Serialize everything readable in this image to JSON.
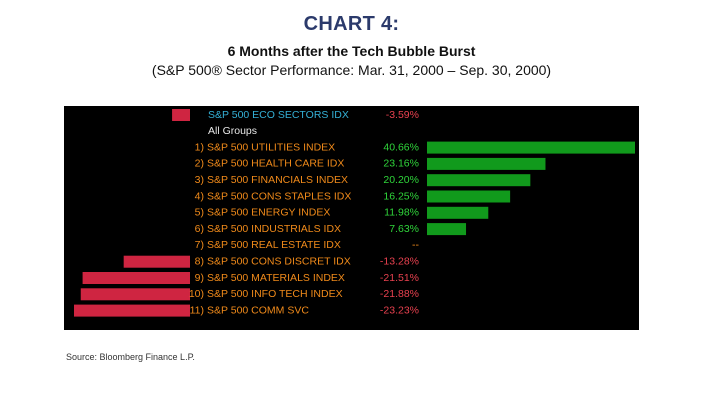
{
  "header": {
    "title": "CHART 4:",
    "subtitle": "6 Months after the Tech Bubble Burst",
    "subtitle2": "(S&P 500® Sector Performance: Mar. 31, 2000 – Sep. 30, 2000)"
  },
  "footer": {
    "source": "Source: Bloomberg Finance L.P."
  },
  "colors": {
    "positive": "#119a1c",
    "negative": "#cf2541",
    "label_orange": "#f08a1a",
    "index_cyan": "#34b0d6",
    "value_green": "#2fd43a",
    "value_red": "#e8414f",
    "group_white": "#e8e8e8"
  },
  "chart_data": {
    "type": "bar",
    "orientation": "horizontal",
    "summary": {
      "label": "S&P 500 ECO SECTORS IDX",
      "value": -3.59,
      "display": "-3.59%"
    },
    "group_label": "All Groups",
    "categories": [
      {
        "rank": "1)",
        "label": "S&P 500 UTILITIES INDEX",
        "value": 40.66,
        "display": "40.66%"
      },
      {
        "rank": "2)",
        "label": "S&P 500 HEALTH CARE IDX",
        "value": 23.16,
        "display": "23.16%"
      },
      {
        "rank": "3)",
        "label": "S&P 500 FINANCIALS INDEX",
        "value": 20.2,
        "display": "20.20%"
      },
      {
        "rank": "4)",
        "label": "S&P 500 CONS STAPLES IDX",
        "value": 16.25,
        "display": "16.25%"
      },
      {
        "rank": "5)",
        "label": "S&P 500 ENERGY INDEX",
        "value": 11.98,
        "display": "11.98%"
      },
      {
        "rank": "6)",
        "label": "S&P 500 INDUSTRIALS IDX",
        "value": 7.63,
        "display": "7.63%"
      },
      {
        "rank": "7)",
        "label": "S&P 500 REAL ESTATE IDX",
        "value": null,
        "display": "--"
      },
      {
        "rank": "8)",
        "label": "S&P 500 CONS DISCRET IDX",
        "value": -13.28,
        "display": "-13.28%"
      },
      {
        "rank": "9)",
        "label": "S&P 500 MATERIALS INDEX",
        "value": -21.51,
        "display": "-21.51%"
      },
      {
        "rank": "10)",
        "label": "S&P 500 INFO TECH INDEX",
        "value": -21.88,
        "display": "-21.88%"
      },
      {
        "rank": "11)",
        "label": "S&P 500 COMM SVC",
        "value": -23.23,
        "display": "-23.23%"
      }
    ]
  }
}
